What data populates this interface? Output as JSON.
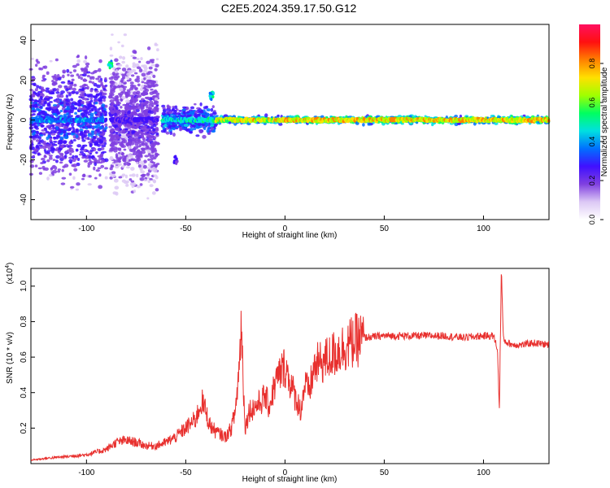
{
  "title": "C2E5.2024.359.17.50.G12",
  "chart_data": [
    {
      "type": "heatmap",
      "xlabel": "Height of straight line (km)",
      "ylabel": "Frequency (Hz)",
      "xlim": [
        -128,
        133
      ],
      "ylim": [
        -50,
        48
      ],
      "xticks": [
        -100,
        -50,
        0,
        50,
        100
      ],
      "yticks": [
        -40,
        -20,
        0,
        20,
        40
      ],
      "xtick_labels": [
        "-100",
        "-50",
        "0",
        "50",
        "100"
      ],
      "ytick_labels": [
        "-40",
        "-20",
        "0",
        "20",
        "40"
      ],
      "colorbar": {
        "label": "Normalized spectral amplitude",
        "range": [
          0,
          1
        ],
        "ticks": [
          0.0,
          0.2,
          0.4,
          0.6,
          0.8
        ],
        "tick_labels": [
          "0.0",
          "0.2",
          "0.4",
          "0.6",
          "0.8"
        ],
        "colormap": [
          "#ffffff",
          "#dcc8f5",
          "#8040e0",
          "#4010ff",
          "#0070ff",
          "#00e0e0",
          "#00ff60",
          "#a0ff00",
          "#ffe000",
          "#ff8000",
          "#ff1010",
          "#ff1060"
        ]
      },
      "ridge": {
        "frequency_hz": 0,
        "segments": [
          {
            "x_from": -128,
            "x_to": -90,
            "level": 0.35,
            "scatter": "broad"
          },
          {
            "x_from": -88,
            "x_to": -64,
            "level": 0.25,
            "scatter": "very-broad"
          },
          {
            "x_from": -62,
            "x_to": -35,
            "level": 0.45,
            "scatter": "medium"
          },
          {
            "x_from": -35,
            "x_to": -5,
            "level": 0.65,
            "scatter": "narrow"
          },
          {
            "x_from": -5,
            "x_to": 133,
            "level": 0.7,
            "scatter": "narrow"
          }
        ]
      },
      "features": [
        {
          "x": -88,
          "frequency_hz": 28,
          "level": 0.6
        },
        {
          "x": -37,
          "frequency_hz": 12,
          "level": 0.6
        },
        {
          "x": -55,
          "frequency_hz": -20,
          "level": 0.3
        }
      ],
      "grid": false
    },
    {
      "type": "line",
      "xlabel": "Height of straight line (km)",
      "ylabel": "SNR (10 * v/v)",
      "y_multiplier": "(x10",
      "y_multiplier_exp": "4",
      "xlim": [
        -128,
        133
      ],
      "ylim": [
        0,
        1.1
      ],
      "xticks": [
        -100,
        -50,
        0,
        50,
        100
      ],
      "yticks": [
        0.2,
        0.4,
        0.6,
        0.8,
        1.0
      ],
      "xtick_labels": [
        "-100",
        "-50",
        "0",
        "50",
        "100"
      ],
      "ytick_labels": [
        "0.2",
        "0.4",
        "0.6",
        "0.8",
        "1.0"
      ],
      "series": [
        {
          "color": "#e8302e",
          "x": [
            -128,
            -120,
            -110,
            -100,
            -90,
            -85,
            -80,
            -75,
            -70,
            -65,
            -60,
            -55,
            -50,
            -45,
            -42,
            -40,
            -38,
            -35,
            -30,
            -27,
            -25,
            -23,
            -22,
            -21,
            -20,
            -18,
            -15,
            -12,
            -10,
            -8,
            -5,
            -3,
            0,
            2,
            5,
            8,
            10,
            12,
            15,
            20,
            25,
            30,
            35,
            40,
            50,
            60,
            70,
            80,
            90,
            100,
            105,
            107,
            108,
            109,
            110,
            112,
            115,
            120,
            125,
            133
          ],
          "y": [
            0.02,
            0.03,
            0.04,
            0.05,
            0.08,
            0.12,
            0.13,
            0.12,
            0.1,
            0.1,
            0.12,
            0.15,
            0.2,
            0.25,
            0.35,
            0.3,
            0.22,
            0.18,
            0.15,
            0.2,
            0.3,
            0.55,
            0.82,
            0.45,
            0.2,
            0.3,
            0.32,
            0.35,
            0.38,
            0.32,
            0.45,
            0.5,
            0.55,
            0.48,
            0.38,
            0.3,
            0.45,
            0.4,
            0.55,
            0.58,
            0.62,
            0.66,
            0.69,
            0.71,
            0.72,
            0.72,
            0.72,
            0.72,
            0.71,
            0.72,
            0.72,
            0.65,
            0.3,
            1.1,
            0.7,
            0.68,
            0.67,
            0.67,
            0.68,
            0.67
          ]
        }
      ],
      "grid": false
    }
  ]
}
